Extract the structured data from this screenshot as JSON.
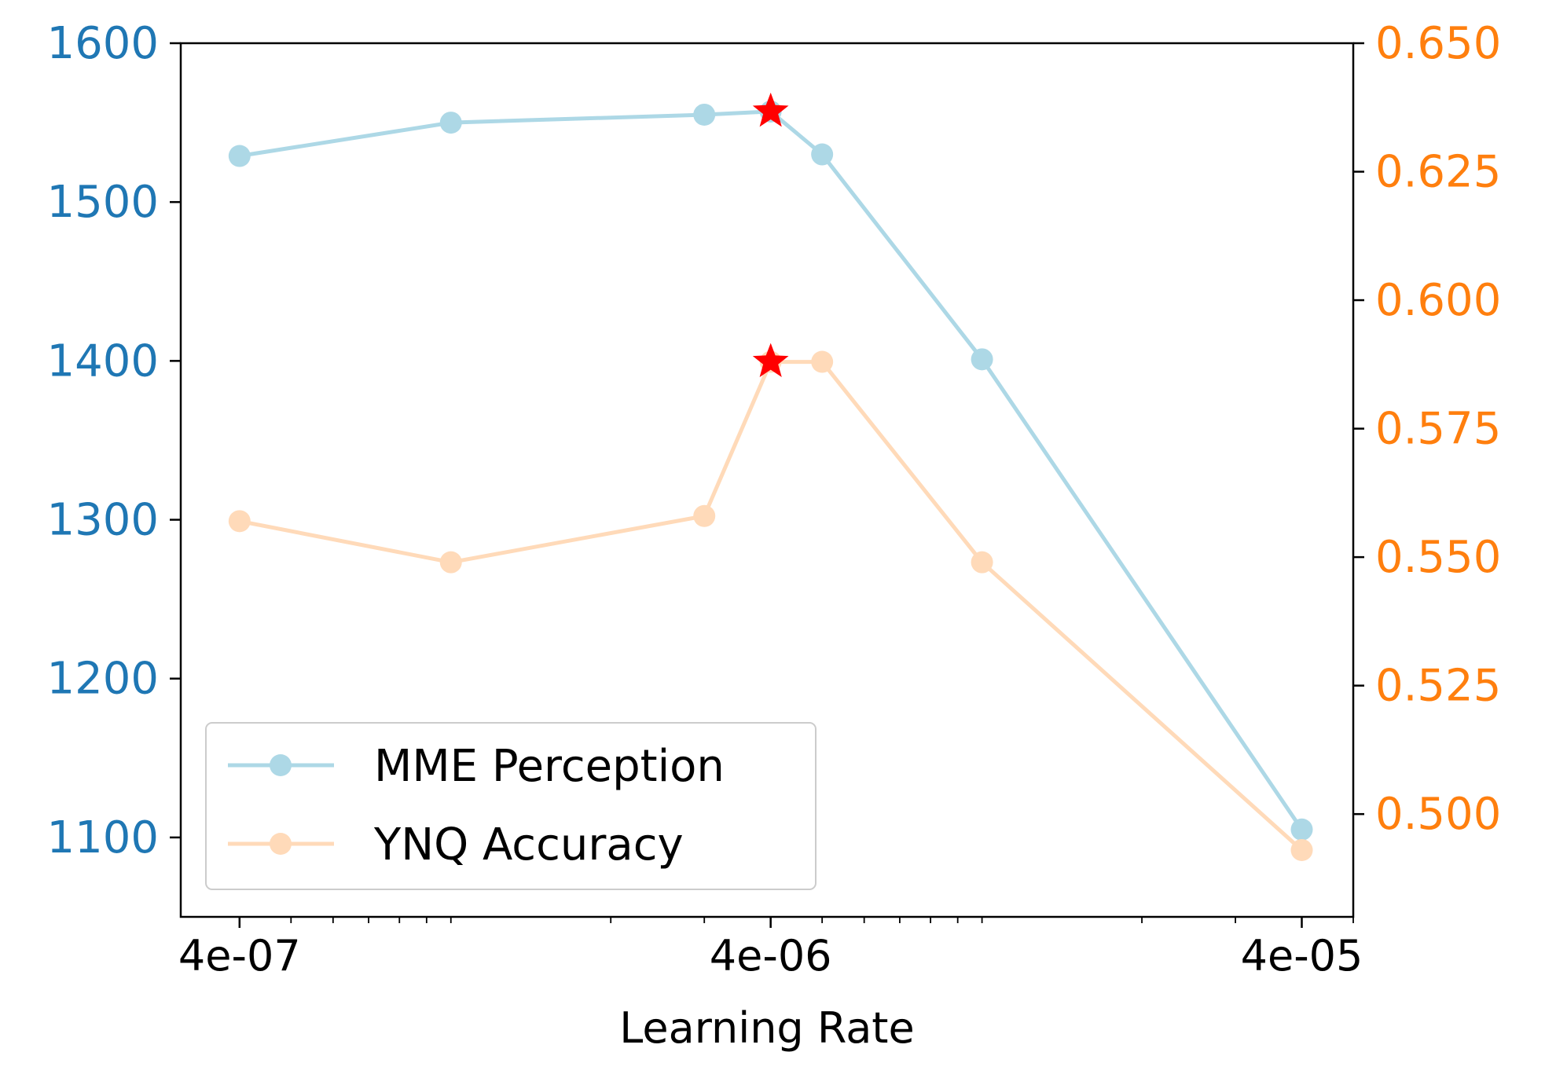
{
  "chart_data": {
    "type": "line",
    "title": "",
    "xlabel": "Learning Rate",
    "xscale": "log",
    "xlim": [
      3.1e-07,
      5e-05
    ],
    "xticks": [
      {
        "value": 4e-07,
        "label": "4e-07"
      },
      {
        "value": 4e-06,
        "label": "4e-06"
      },
      {
        "value": 4e-05,
        "label": "4e-05"
      }
    ],
    "y_left": {
      "range": [
        1050,
        1600
      ],
      "ticks": [
        1100,
        1200,
        1300,
        1400,
        1500,
        1600
      ],
      "tick_labels": [
        "1100",
        "1200",
        "1300",
        "1400",
        "1500",
        "1600"
      ],
      "color": "#1f77b4"
    },
    "y_right": {
      "range": [
        0.48,
        0.65
      ],
      "ticks": [
        0.5,
        0.525,
        0.55,
        0.575,
        0.6,
        0.625,
        0.65
      ],
      "tick_labels": [
        "0.500",
        "0.525",
        "0.550",
        "0.575",
        "0.600",
        "0.625",
        "0.650"
      ],
      "color": "#ff7f0e"
    },
    "series": [
      {
        "name": "MME Perception",
        "axis": "left",
        "color": "#add8e6",
        "x": [
          4e-07,
          1e-06,
          3e-06,
          4e-06,
          5e-06,
          1e-05,
          4e-05
        ],
        "y": [
          1529,
          1550,
          1555,
          1557,
          1530,
          1401,
          1105
        ]
      },
      {
        "name": "YNQ Accuracy",
        "axis": "right",
        "color": "#ffdab9",
        "x": [
          4e-07,
          1e-06,
          3e-06,
          4e-06,
          5e-06,
          1e-05,
          4e-05
        ],
        "y": [
          0.557,
          0.549,
          0.558,
          0.588,
          0.588,
          0.549,
          0.493
        ]
      }
    ],
    "highlights": [
      {
        "series": "MME Perception",
        "x": 4e-06,
        "y": 1557,
        "marker": "star",
        "color": "#ff0000"
      },
      {
        "series": "YNQ Accuracy",
        "x": 4e-06,
        "y": 0.588,
        "marker": "star",
        "color": "#ff0000"
      }
    ],
    "legend": {
      "position": "lower-left",
      "entries": [
        "MME Perception",
        "YNQ Accuracy"
      ]
    }
  }
}
